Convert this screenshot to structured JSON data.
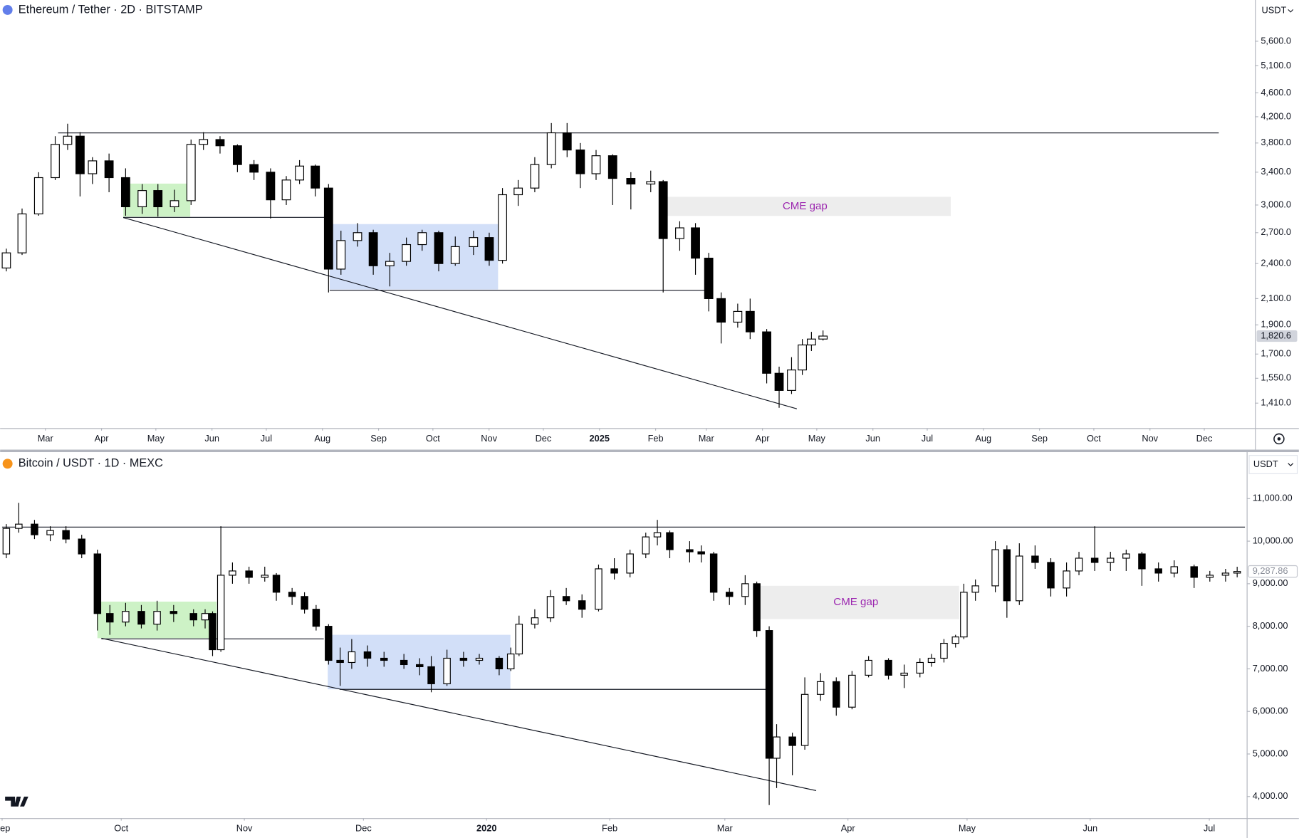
{
  "chart_data": [
    {
      "type": "candlestick",
      "title": "Ethereum / Tether · 2D · BITSTAMP",
      "currency": "USDT",
      "log_scale": true,
      "candle_colors": {
        "up": "#ffffff",
        "down": "#000000",
        "wick": "#000000"
      },
      "x": [
        -22,
        -13,
        -4,
        5,
        12,
        19,
        26,
        35,
        44,
        53,
        62,
        71,
        80,
        87,
        96,
        106,
        115,
        124,
        133,
        140,
        149,
        156,
        163,
        172,
        181,
        190,
        199,
        208,
        217,
        226,
        236,
        245,
        252,
        261,
        270,
        279,
        288,
        295,
        304,
        313,
        323,
        334,
        341,
        350,
        359,
        366,
        373,
        382,
        389,
        398,
        405,
        412,
        418,
        423,
        429
      ],
      "open": [
        2360,
        2500,
        2900,
        3330,
        3780,
        3900,
        3380,
        3550,
        3330,
        2980,
        3170,
        2980,
        3050,
        3780,
        3850,
        3760,
        3500,
        3400,
        3060,
        3300,
        3480,
        3200,
        2350,
        2620,
        2700,
        2380,
        2420,
        2580,
        2700,
        2400,
        2560,
        2650,
        2430,
        3120,
        3200,
        3500,
        3950,
        3700,
        3380,
        3620,
        3320,
        3250,
        3280,
        2640,
        2750,
        2450,
        2100,
        1920,
        2000,
        1850,
        1580,
        1480,
        1600,
        1760,
        1800
      ],
      "high": [
        2540,
        2960,
        3400,
        3900,
        4090,
        3960,
        3600,
        3650,
        3450,
        3250,
        3250,
        3180,
        3850,
        3960,
        3900,
        3780,
        3560,
        3450,
        3350,
        3560,
        3500,
        3250,
        2720,
        2800,
        2730,
        2500,
        2650,
        2730,
        2720,
        2660,
        2720,
        2700,
        3200,
        3300,
        3600,
        4100,
        4100,
        3800,
        3700,
        3640,
        3400,
        3420,
        3300,
        2820,
        2800,
        2500,
        2150,
        2060,
        2100,
        1870,
        1620,
        1680,
        1800,
        1850,
        1860
      ],
      "low": [
        2330,
        2480,
        2880,
        3300,
        3700,
        3100,
        3250,
        3150,
        2880,
        2900,
        2870,
        2920,
        3000,
        3700,
        3650,
        3400,
        3300,
        2850,
        3000,
        3250,
        3100,
        2150,
        2300,
        2560,
        2300,
        2200,
        2380,
        2520,
        2330,
        2380,
        2480,
        2380,
        2400,
        2990,
        3150,
        3450,
        3600,
        3200,
        3300,
        3000,
        2950,
        3150,
        2150,
        2520,
        2300,
        2000,
        1770,
        1880,
        1800,
        1520,
        1385,
        1460,
        1570,
        1720,
        1790
      ],
      "close": [
        2500,
        2900,
        3330,
        3780,
        3900,
        3380,
        3550,
        3330,
        2980,
        3170,
        2980,
        3050,
        3780,
        3850,
        3760,
        3500,
        3400,
        3060,
        3300,
        3480,
        3200,
        2350,
        2620,
        2700,
        2380,
        2420,
        2580,
        2700,
        2400,
        2560,
        2650,
        2430,
        3120,
        3200,
        3500,
        3950,
        3700,
        3380,
        3620,
        3320,
        3250,
        3280,
        2640,
        2750,
        2450,
        2100,
        1920,
        2000,
        1850,
        1580,
        1480,
        1600,
        1760,
        1800,
        1820.6
      ],
      "xlim": [
        -25,
        668
      ],
      "ylim": [
        1282,
        6553
      ],
      "xticks": [
        {
          "value": 0,
          "label": "Mar"
        },
        {
          "value": 31,
          "label": "Apr"
        },
        {
          "value": 61,
          "label": "May"
        },
        {
          "value": 92,
          "label": "Jun"
        },
        {
          "value": 122,
          "label": "Jul"
        },
        {
          "value": 153,
          "label": "Aug"
        },
        {
          "value": 184,
          "label": "Sep"
        },
        {
          "value": 214,
          "label": "Oct"
        },
        {
          "value": 245,
          "label": "Nov"
        },
        {
          "value": 275,
          "label": "Dec"
        },
        {
          "value": 306,
          "label": "2025"
        },
        {
          "value": 337,
          "label": "Feb"
        },
        {
          "value": 365,
          "label": "Mar"
        },
        {
          "value": 396,
          "label": "Apr"
        },
        {
          "value": 426,
          "label": "May"
        },
        {
          "value": 457,
          "label": "Jun"
        },
        {
          "value": 487,
          "label": "Jul"
        },
        {
          "value": 518,
          "label": "Aug"
        },
        {
          "value": 549,
          "label": "Sep"
        },
        {
          "value": 579,
          "label": "Oct"
        },
        {
          "value": 610,
          "label": "Nov"
        },
        {
          "value": 640,
          "label": "Dec"
        }
      ],
      "yticks": [
        {
          "value": 1410,
          "label": "1,410.0"
        },
        {
          "value": 1550,
          "label": "1,550.0"
        },
        {
          "value": 1700,
          "label": "1,700.0"
        },
        {
          "value": 1900,
          "label": "1,900.0"
        },
        {
          "value": 2100,
          "label": "2,100.0"
        },
        {
          "value": 2400,
          "label": "2,400.0"
        },
        {
          "value": 2700,
          "label": "2,700.0"
        },
        {
          "value": 3000,
          "label": "3,000.0"
        },
        {
          "value": 3400,
          "label": "3,400.0"
        },
        {
          "value": 3800,
          "label": "3,800.0"
        },
        {
          "value": 4200,
          "label": "4,200.0"
        },
        {
          "value": 4600,
          "label": "4,600.0"
        },
        {
          "value": 5100,
          "label": "5,100.0"
        },
        {
          "value": 5600,
          "label": "5,600.0"
        }
      ],
      "last_price": {
        "value": 1820.6,
        "label": "1,820.6"
      },
      "hlines": [
        {
          "y": 3960,
          "x": [
            7,
            648
          ]
        },
        {
          "y": 2870,
          "x": [
            43,
            154
          ]
        },
        {
          "y": 2174,
          "x": [
            157,
            365
          ]
        }
      ],
      "trendlines": [
        {
          "x": [
            43,
            415
          ],
          "y": [
            2860,
            1380
          ]
        }
      ],
      "boxes": [
        {
          "x": [
            43,
            80
          ],
          "y": [
            2870,
            3255
          ],
          "color": "#c8f1c0"
        },
        {
          "x": [
            157,
            250
          ],
          "y": [
            2174,
            2790
          ],
          "color": "#cddcf7"
        },
        {
          "x": [
            339,
            500
          ],
          "y": [
            2878,
            3095
          ],
          "color": "#ebebeb",
          "label": "CME gap"
        }
      ],
      "label_color": "#9c27b0"
    },
    {
      "type": "candlestick",
      "title": "Bitcoin / USDT · 1D · MEXC",
      "currency": "USDT",
      "log_scale": false,
      "candle_colors": {
        "up": "#ffffff",
        "down": "#000000",
        "wick": "#000000"
      },
      "x": [
        1,
        4,
        8,
        12,
        16,
        20,
        24,
        27,
        31,
        35,
        39,
        43,
        48,
        51,
        53,
        55,
        58,
        62,
        66,
        69,
        73,
        76,
        79,
        82,
        85,
        88,
        92,
        96,
        101,
        105,
        108,
        112,
        116,
        120,
        125,
        128,
        130,
        134,
        138,
        142,
        146,
        150,
        154,
        158,
        162,
        165,
        168,
        173,
        176,
        179,
        183,
        187,
        190,
        193,
        195,
        199,
        202,
        206,
        210,
        214,
        218,
        223,
        227,
        231,
        234,
        237,
        240,
        242,
        245,
        250,
        253,
        256,
        260,
        264,
        268,
        271,
        275,
        279,
        283,
        287,
        291,
        295,
        300,
        304,
        308,
        311
      ],
      "open": [
        9700,
        10300,
        10400,
        10150,
        10250,
        10050,
        9700,
        8300,
        8100,
        8350,
        8050,
        8350,
        8300,
        8150,
        8300,
        7450,
        9200,
        9300,
        9150,
        9200,
        8800,
        8700,
        8400,
        8000,
        7200,
        7150,
        7400,
        7250,
        7200,
        7100,
        7050,
        6650,
        7250,
        7200,
        7250,
        7000,
        7350,
        8050,
        8200,
        8700,
        8600,
        8400,
        9350,
        9250,
        9700,
        10100,
        10200,
        9800,
        9750,
        9700,
        8800,
        8700,
        9000,
        7900,
        4900,
        5400,
        5200,
        6400,
        6700,
        6100,
        6850,
        7200,
        6850,
        6900,
        7150,
        7250,
        7600,
        7750,
        8800,
        8950,
        9800,
        8600,
        9650,
        9500,
        8900,
        9300,
        9600,
        9500,
        9600,
        9700,
        9350,
        9250,
        9400,
        9150,
        9200,
        9250
      ],
      "high": [
        10400,
        10900,
        10500,
        10350,
        10350,
        10150,
        9800,
        8500,
        8550,
        8500,
        8600,
        8500,
        8400,
        8400,
        8350,
        10350,
        9500,
        9400,
        9400,
        9250,
        8900,
        8800,
        8500,
        8050,
        7500,
        7700,
        7550,
        7400,
        7350,
        7250,
        7300,
        7450,
        7400,
        7350,
        7300,
        7500,
        8250,
        8400,
        8850,
        8900,
        8750,
        9450,
        9600,
        9800,
        10200,
        10500,
        10250,
        10000,
        9900,
        9750,
        8900,
        9200,
        9050,
        8000,
        5700,
        5500,
        6800,
        6900,
        6800,
        6950,
        7300,
        7250,
        7100,
        7250,
        7350,
        7700,
        7800,
        9000,
        9100,
        10000,
        9900,
        9950,
        9900,
        9600,
        9500,
        9750,
        10350,
        9750,
        9800,
        9750,
        9500,
        9550,
        9450,
        9300,
        9350,
        9400
      ],
      "low": [
        9600,
        10200,
        10050,
        10000,
        9950,
        9600,
        7900,
        7800,
        8000,
        7950,
        7900,
        8100,
        8000,
        7950,
        7300,
        7400,
        9000,
        9000,
        9050,
        8600,
        8500,
        8300,
        7900,
        7100,
        6600,
        7000,
        7050,
        7050,
        7000,
        6850,
        6450,
        6600,
        7050,
        7100,
        6850,
        6950,
        7300,
        7950,
        8100,
        8500,
        8200,
        8350,
        9100,
        9150,
        9600,
        9900,
        9600,
        9500,
        9500,
        8600,
        8500,
        8500,
        7750,
        3800,
        4200,
        4500,
        5100,
        6250,
        5900,
        6050,
        6800,
        6750,
        6550,
        6800,
        7050,
        7150,
        7500,
        7700,
        8600,
        8800,
        8200,
        8500,
        9350,
        8700,
        8700,
        9200,
        9300,
        9300,
        9300,
        8950,
        9050,
        9150,
        8900,
        9050,
        9050,
        9150
      ],
      "close": [
        10300,
        10400,
        10150,
        10250,
        10050,
        9700,
        8300,
        8100,
        8350,
        8050,
        8350,
        8300,
        8150,
        8300,
        7450,
        9200,
        9300,
        9150,
        9200,
        8800,
        8700,
        8400,
        8000,
        7200,
        7150,
        7400,
        7250,
        7200,
        7100,
        7050,
        6650,
        7250,
        7200,
        7250,
        7000,
        7350,
        8050,
        8200,
        8700,
        8600,
        8400,
        9350,
        9250,
        9700,
        10100,
        10200,
        9800,
        9750,
        9700,
        8800,
        8700,
        9000,
        7900,
        4900,
        5400,
        5200,
        6400,
        6700,
        6100,
        6850,
        7200,
        6850,
        6900,
        7150,
        7250,
        7600,
        7750,
        8800,
        8950,
        9800,
        8600,
        9650,
        9500,
        8900,
        9300,
        9600,
        9500,
        9600,
        9700,
        9350,
        9250,
        9400,
        9150,
        9200,
        9250,
        9287.86
      ],
      "xlim": [
        -0.5,
        313
      ],
      "ylim": [
        3493,
        12092
      ],
      "xticks": [
        {
          "value": 0,
          "label": "Sep"
        },
        {
          "value": 30,
          "label": "Oct"
        },
        {
          "value": 61,
          "label": "Nov"
        },
        {
          "value": 91,
          "label": "Dec"
        },
        {
          "value": 122,
          "label": "2020"
        },
        {
          "value": 153,
          "label": "Feb"
        },
        {
          "value": 182,
          "label": "Mar"
        },
        {
          "value": 213,
          "label": "Apr"
        },
        {
          "value": 243,
          "label": "May"
        },
        {
          "value": 274,
          "label": "Jun"
        },
        {
          "value": 304,
          "label": "Jul"
        }
      ],
      "yticks": [
        {
          "value": 4000,
          "label": "4,000.00"
        },
        {
          "value": 5000,
          "label": "5,000.00"
        },
        {
          "value": 6000,
          "label": "6,000.00"
        },
        {
          "value": 7000,
          "label": "7,000.00"
        },
        {
          "value": 8000,
          "label": "8,000.00"
        },
        {
          "value": 9000,
          "label": "9,000.00"
        },
        {
          "value": 10000,
          "label": "10,000.00"
        },
        {
          "value": 11000,
          "label": "11,000.00"
        }
      ],
      "last_price": {
        "value": 9287.86,
        "label": "9,287.86"
      },
      "hlines": [
        {
          "y": 10340,
          "x": [
            0,
            313
          ]
        },
        {
          "y": 7720,
          "x": [
            25,
            81
          ]
        },
        {
          "y": 6520,
          "x": [
            85,
            193
          ]
        }
      ],
      "trendlines": [
        {
          "x": [
            25,
            205
          ],
          "y": [
            7720,
            4140
          ]
        }
      ],
      "boxes": [
        {
          "x": [
            24,
            54
          ],
          "y": [
            7720,
            8580
          ],
          "color": "#c8f1c0"
        },
        {
          "x": [
            82,
            128
          ],
          "y": [
            6520,
            7800
          ],
          "color": "#cddcf7"
        },
        {
          "x": [
            189,
            241
          ],
          "y": [
            8170,
            8950
          ],
          "color": "#ebebeb",
          "label": "CME gap"
        }
      ],
      "label_color": "#9c27b0"
    }
  ]
}
